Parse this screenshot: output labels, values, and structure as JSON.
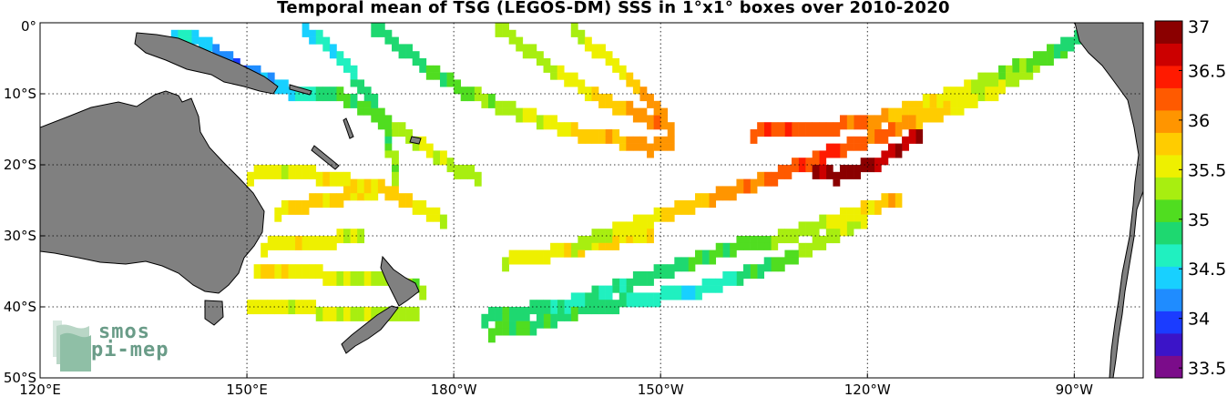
{
  "chart_data": {
    "type": "heatmap",
    "title": "Temporal mean of TSG (LEGOS-DM) SSS in 1°x1° boxes over 2010-2020",
    "x_range_lon": [
      120,
      280
    ],
    "y_range_lat": [
      0,
      -50
    ],
    "x_ticks": [
      {
        "lon": 120,
        "label": "120°E"
      },
      {
        "lon": 150,
        "label": "150°E"
      },
      {
        "lon": 180,
        "label": "180°W"
      },
      {
        "lon": 210,
        "label": "150°W"
      },
      {
        "lon": 240,
        "label": "120°W"
      },
      {
        "lon": 270,
        "label": "90°W"
      }
    ],
    "y_ticks": [
      {
        "lat": 0,
        "label": "0°"
      },
      {
        "lat": -10,
        "label": "10°S"
      },
      {
        "lat": -20,
        "label": "20°S"
      },
      {
        "lat": -30,
        "label": "30°S"
      },
      {
        "lat": -40,
        "label": "40°S"
      },
      {
        "lat": -50,
        "label": "50°S"
      }
    ],
    "colorbar": {
      "min": 33.4,
      "max": 37.0,
      "ticks": [
        33.5,
        34,
        34.5,
        35,
        35.5,
        36,
        36.5,
        37
      ],
      "tick_labels": [
        "33.5",
        "34",
        "34.5",
        "35",
        "35.5",
        "36",
        "36.5",
        "37"
      ],
      "colors": [
        "#7b0c8a",
        "#3b14c8",
        "#1b3cff",
        "#1f8cff",
        "#18d0ff",
        "#20f0c0",
        "#1ed870",
        "#50dd20",
        "#a8ee10",
        "#eef000",
        "#ffcc00",
        "#ff9500",
        "#ff5a00",
        "#ff1a00",
        "#cc0000",
        "#8b0000"
      ]
    },
    "tracks": [
      {
        "name": "",
        "points": [
          [
            139,
            -1,
            34.6
          ],
          [
            143,
            -2,
            34.4
          ],
          [
            146,
            -4,
            34.2
          ],
          [
            149,
            -6,
            34.0
          ],
          [
            152,
            -7,
            34.3
          ],
          [
            156,
            -9,
            34.5
          ],
          [
            160,
            -9,
            34.8
          ],
          [
            164,
            -10,
            35.0
          ],
          [
            168,
            -12,
            35.1
          ],
          [
            171,
            -14,
            35.3
          ],
          [
            174,
            -16,
            35.4
          ],
          [
            177,
            -18,
            35.5
          ],
          [
            180,
            -20,
            35.4
          ],
          [
            183,
            -21,
            35.3
          ]
        ]
      },
      {
        "name": "",
        "points": [
          [
            158,
            -0.5,
            34.5
          ],
          [
            162,
            -3,
            34.6
          ],
          [
            165,
            -6,
            34.7
          ],
          [
            168,
            -10,
            34.8
          ],
          [
            170,
            -14,
            35.0
          ],
          [
            171,
            -18,
            35.2
          ],
          [
            171,
            -21,
            35.3
          ]
        ]
      },
      {
        "name": "",
        "points": [
          [
            168,
            0,
            34.8
          ],
          [
            172,
            -3,
            34.9
          ],
          [
            176,
            -6,
            35.0
          ],
          [
            181,
            -9,
            35.1
          ],
          [
            186,
            -11,
            35.3
          ],
          [
            192,
            -13,
            35.5
          ],
          [
            198,
            -15,
            35.7
          ],
          [
            204,
            -16,
            35.9
          ],
          [
            208,
            -17,
            36.0
          ],
          [
            211,
            -16,
            35.9
          ]
        ]
      },
      {
        "name": "",
        "points": [
          [
            186,
            0,
            35.2
          ],
          [
            190,
            -3,
            35.3
          ],
          [
            194,
            -6,
            35.4
          ],
          [
            199,
            -9,
            35.6
          ],
          [
            203,
            -11,
            35.8
          ],
          [
            208,
            -13,
            36.0
          ],
          [
            211,
            -14,
            36.1
          ]
        ]
      },
      {
        "name": "",
        "points": [
          [
            197,
            0,
            35.3
          ],
          [
            200,
            -3,
            35.5
          ],
          [
            204,
            -6,
            35.7
          ],
          [
            207,
            -9,
            35.9
          ],
          [
            210,
            -12,
            36.0
          ]
        ]
      },
      {
        "name": "",
        "points": [
          [
            271,
            -1,
            34.8
          ],
          [
            267,
            -3,
            34.9
          ],
          [
            263,
            -5,
            35.1
          ],
          [
            258,
            -7,
            35.3
          ],
          [
            253,
            -9,
            35.5
          ],
          [
            247,
            -11,
            35.7
          ],
          [
            241,
            -13,
            36.0
          ],
          [
            235,
            -14,
            36.2
          ],
          [
            229,
            -14,
            36.3
          ],
          [
            223,
            -15,
            36.3
          ]
        ]
      },
      {
        "name": "",
        "points": [
          [
            268,
            -3,
            35.0
          ],
          [
            263,
            -6,
            35.2
          ],
          [
            258,
            -9,
            35.4
          ],
          [
            253,
            -11,
            35.6
          ],
          [
            247,
            -13,
            35.9
          ],
          [
            242,
            -15,
            36.1
          ],
          [
            236,
            -17,
            36.3
          ],
          [
            231,
            -19,
            36.4
          ],
          [
            226,
            -21,
            36.2
          ],
          [
            220,
            -23,
            36.0
          ],
          [
            214,
            -25,
            35.8
          ],
          [
            208,
            -27,
            35.6
          ],
          [
            202,
            -29,
            35.4
          ],
          [
            197,
            -31,
            35.3
          ]
        ]
      },
      {
        "name": "",
        "points": [
          [
            247,
            -15,
            36.7
          ],
          [
            244,
            -17,
            36.8
          ],
          [
            241,
            -19,
            36.8
          ],
          [
            238,
            -20,
            36.9
          ],
          [
            235,
            -21,
            36.8
          ],
          [
            232,
            -20,
            36.7
          ],
          [
            229,
            -19,
            36.6
          ]
        ]
      },
      {
        "name": "",
        "points": [
          [
            244,
            -24,
            35.9
          ],
          [
            238,
            -26,
            35.6
          ],
          [
            232,
            -28,
            35.4
          ],
          [
            226,
            -30,
            35.2
          ],
          [
            220,
            -31,
            35.0
          ],
          [
            214,
            -33,
            34.9
          ],
          [
            208,
            -35,
            34.8
          ],
          [
            202,
            -37,
            34.7
          ],
          [
            196,
            -39,
            34.7
          ],
          [
            190,
            -40,
            34.9
          ],
          [
            184,
            -41,
            35.0
          ]
        ]
      },
      {
        "name": "",
        "points": [
          [
            239,
            -27,
            35.5
          ],
          [
            233,
            -30,
            35.3
          ],
          [
            227,
            -33,
            35.1
          ],
          [
            221,
            -35,
            34.8
          ],
          [
            215,
            -37,
            34.5
          ],
          [
            209,
            -38,
            34.6
          ],
          [
            203,
            -39,
            34.8
          ],
          [
            197,
            -40,
            34.9
          ],
          [
            191,
            -42,
            35.0
          ],
          [
            185,
            -43,
            35.1
          ]
        ]
      },
      {
        "name": "",
        "points": [
          [
            150,
            -21,
            35.6
          ],
          [
            155,
            -20,
            35.5
          ],
          [
            160,
            -21,
            35.6
          ],
          [
            165,
            -22,
            35.6
          ],
          [
            170,
            -23,
            35.7
          ],
          [
            174,
            -25,
            35.6
          ],
          [
            178,
            -27,
            35.5
          ]
        ]
      },
      {
        "name": "",
        "points": [
          [
            154,
            -26,
            35.6
          ],
          [
            158,
            -25,
            35.7
          ],
          [
            163,
            -24,
            35.7
          ],
          [
            168,
            -23,
            35.6
          ]
        ]
      },
      {
        "name": "",
        "points": [
          [
            152,
            -31,
            35.5
          ],
          [
            157,
            -30,
            35.6
          ],
          [
            162,
            -30,
            35.5
          ],
          [
            166,
            -29,
            35.4
          ]
        ]
      },
      {
        "name": "",
        "points": [
          [
            151,
            -34,
            35.7
          ],
          [
            156,
            -34,
            35.6
          ],
          [
            161,
            -35,
            35.5
          ],
          [
            166,
            -35,
            35.4
          ],
          [
            171,
            -36,
            35.3
          ],
          [
            175,
            -37,
            35.2
          ]
        ]
      },
      {
        "name": "",
        "points": [
          [
            150,
            -39,
            35.6
          ],
          [
            155,
            -39,
            35.5
          ],
          [
            160,
            -40,
            35.5
          ],
          [
            165,
            -40,
            35.4
          ],
          [
            170,
            -40,
            35.3
          ],
          [
            174,
            -40,
            35.3
          ]
        ]
      },
      {
        "name": "",
        "points": [
          [
            187,
            -33,
            35.5
          ],
          [
            193,
            -32,
            35.6
          ],
          [
            198,
            -31,
            35.7
          ],
          [
            203,
            -30,
            35.7
          ],
          [
            208,
            -29,
            35.6
          ]
        ]
      }
    ]
  }
}
